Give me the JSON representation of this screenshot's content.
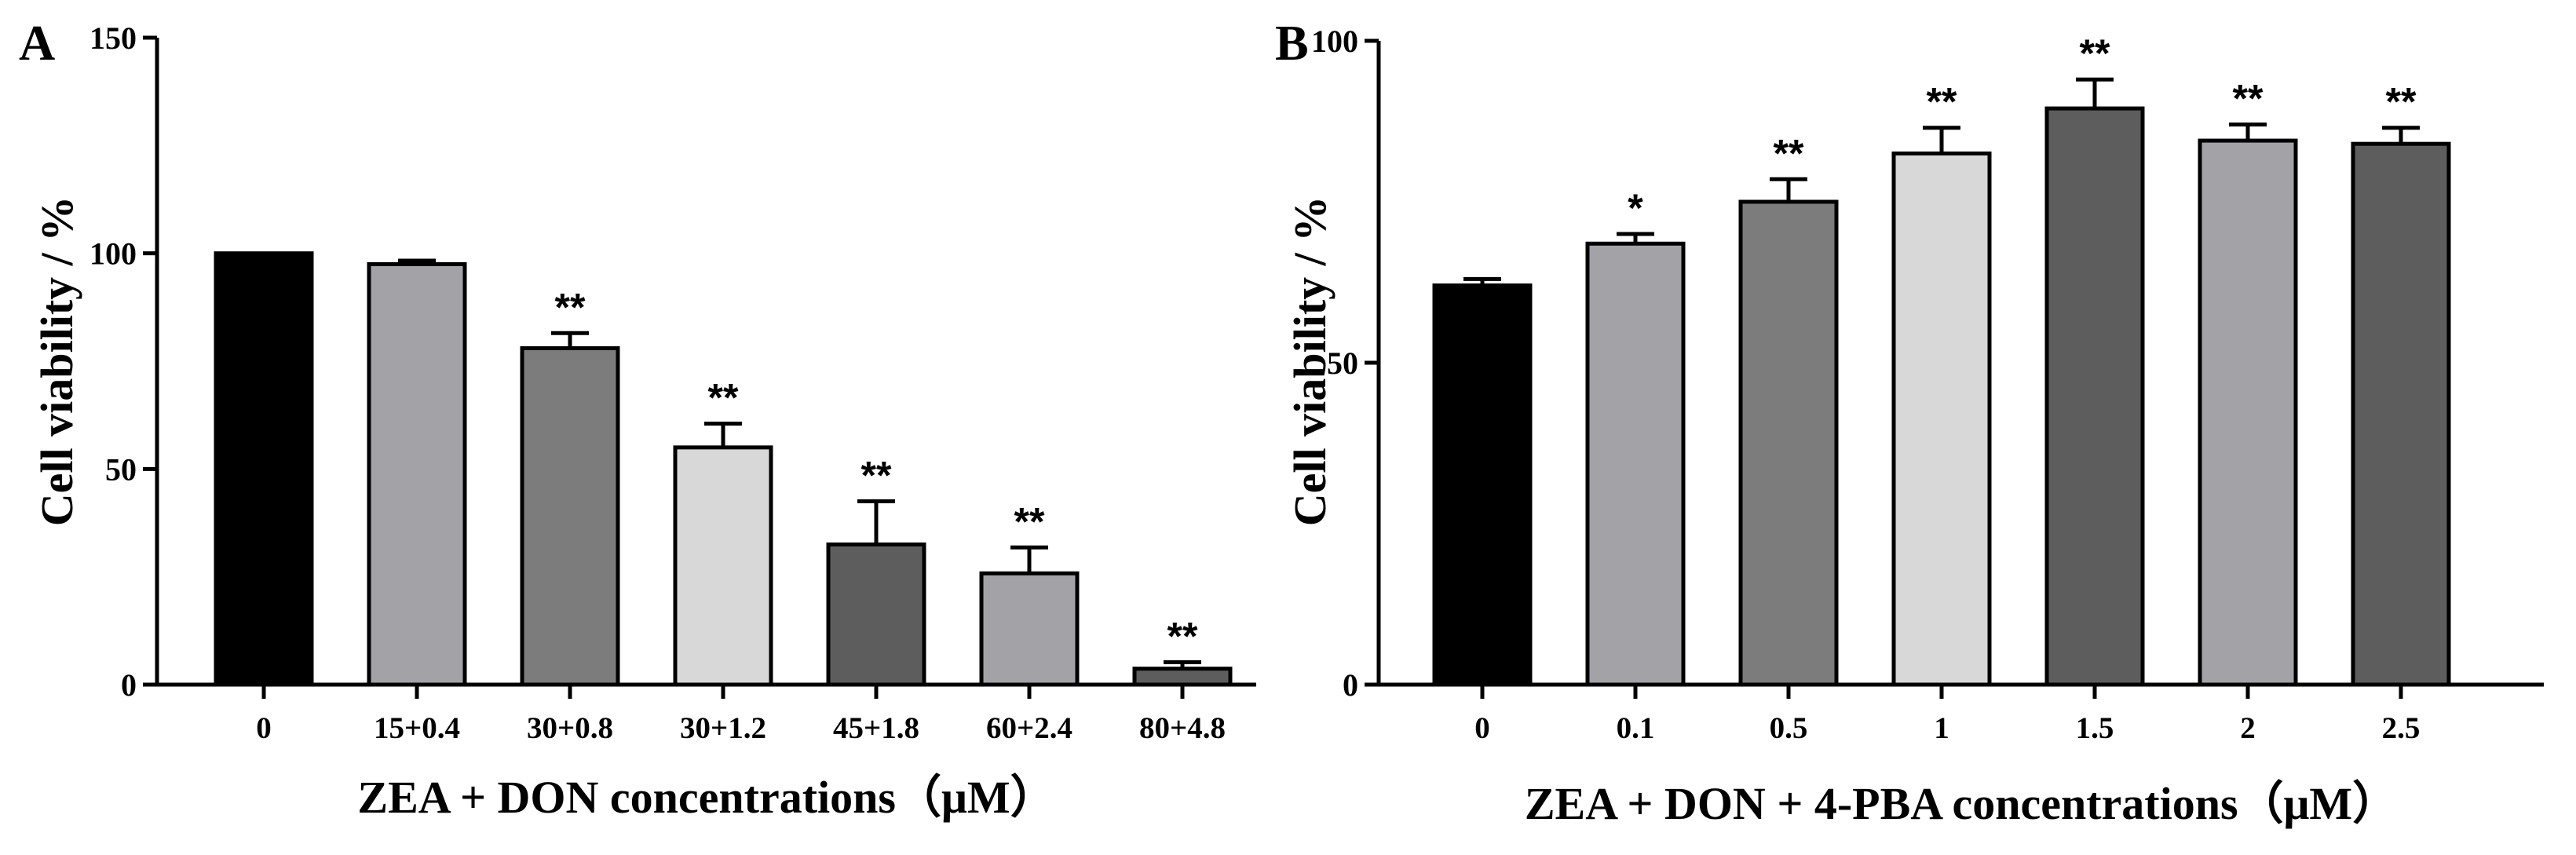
{
  "chart_data": [
    {
      "type": "bar",
      "panel": "A",
      "categories": [
        "0",
        "15+0.4",
        "30+0.8",
        "30+1.2",
        "45+1.8",
        "60+2.4",
        "80+4.8"
      ],
      "values": [
        100,
        97.5,
        78,
        55,
        32.5,
        25.8,
        3.7
      ],
      "errors": [
        0,
        0.8,
        3.5,
        5.5,
        10,
        6,
        1.5
      ],
      "significance": [
        "",
        "",
        "**",
        "**",
        "**",
        "**",
        "**"
      ],
      "colors": [
        "#000000",
        "#a3a3a7",
        "#7c7c7c",
        "#d8d8d8",
        "#5d5d5d",
        "#a3a3a7",
        "#5d5d5d"
      ],
      "xlabel": "ZEA + DON concentrations（μM）",
      "ylabel": "Cell viability / %",
      "ylim": [
        0,
        150
      ],
      "yticks": [
        0,
        50,
        100,
        150
      ],
      "ytick_labels": [
        "0",
        "50",
        "100",
        "150"
      ],
      "grid": false
    },
    {
      "type": "bar",
      "panel": "B",
      "categories": [
        "0",
        "0.1",
        "0.5",
        "1",
        "1.5",
        "2",
        "2.5"
      ],
      "values": [
        62,
        68.5,
        75,
        82.5,
        89.5,
        84.5,
        84
      ],
      "errors": [
        1,
        1.5,
        3.5,
        4,
        4.5,
        2.5,
        2.5
      ],
      "significance": [
        "",
        "*",
        "**",
        "**",
        "**",
        "**",
        "**"
      ],
      "colors": [
        "#000000",
        "#a3a3a7",
        "#7c7c7c",
        "#d8d8d8",
        "#5d5d5d",
        "#a3a3a7",
        "#5d5d5d"
      ],
      "xlabel": "ZEA + DON + 4-PBA concentrations（μM）",
      "ylabel": "Cell viability / %",
      "ylim": [
        0,
        100
      ],
      "yticks": [
        0,
        50,
        100
      ],
      "ytick_labels": [
        "0",
        "50",
        "100"
      ],
      "grid": false
    }
  ]
}
